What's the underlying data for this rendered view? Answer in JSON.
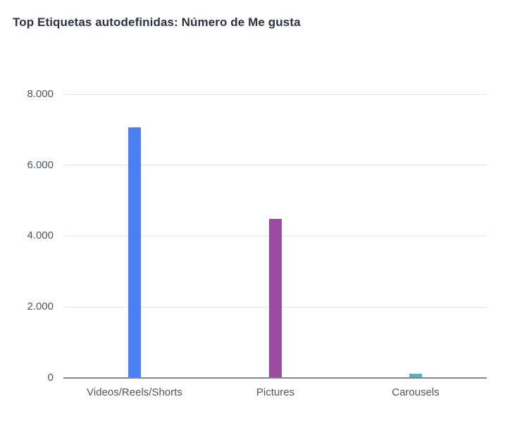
{
  "chart_data": {
    "type": "bar",
    "title": "Top Etiquetas autodefinidas: Número de Me gusta",
    "xlabel": "",
    "ylabel": "",
    "categories": [
      "Videos/Reels/Shorts",
      "Pictures",
      "Carousels"
    ],
    "values": [
      7070,
      4490,
      120
    ],
    "colors": [
      "#4a7ff6",
      "#9b4ca0",
      "#4bb7c4"
    ],
    "ylim": [
      0,
      8000
    ],
    "yticks": [
      0,
      2000,
      4000,
      6000,
      8000
    ],
    "ytick_labels": [
      "0",
      "2.000",
      "4.000",
      "6.000",
      "8.000"
    ],
    "grid": true,
    "legend": "none"
  },
  "header": {
    "title": "Top Etiquetas autodefinidas: Número de Me gusta"
  },
  "axis": {
    "y_labels": [
      "8.000",
      "6.000",
      "4.000",
      "2.000",
      "0"
    ],
    "x_labels": [
      "Videos/Reels/Shorts",
      "Pictures",
      "Carousels"
    ]
  }
}
